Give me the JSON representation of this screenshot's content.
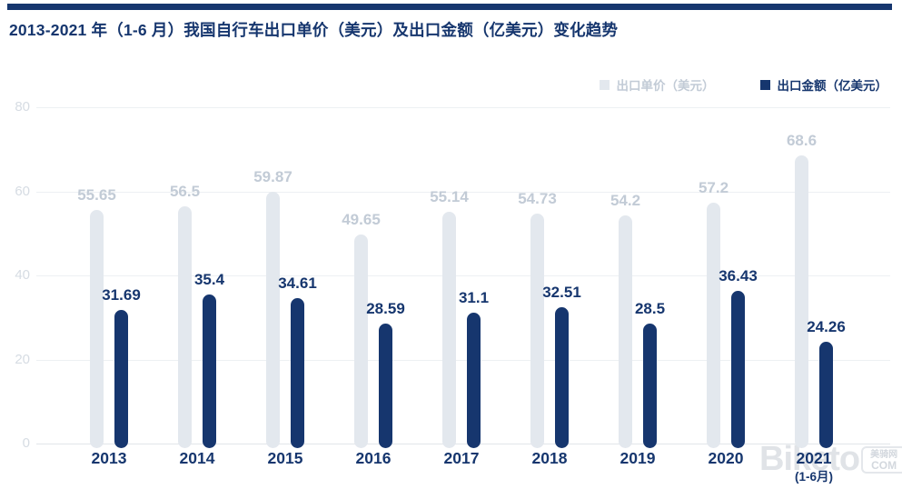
{
  "colors": {
    "navy": "#16366e",
    "gray_bar": "#e3e8ee",
    "gray_label": "#c2cbd6",
    "axis_tick": "#d6dce3",
    "gridline": "#edf0f3",
    "axis_line": "#e2e6ea",
    "background": "#ffffff"
  },
  "watermark": {
    "brand": "Biketo",
    "box_line1": "美骑网",
    "box_line2": "COM"
  },
  "chart_data": {
    "type": "bar",
    "title": "2013-2021 年（1-6 月）我国自行车出口单价（美元）及出口金额（亿美元）变化趋势",
    "categories": [
      "2013",
      "2014",
      "2015",
      "2016",
      "2017",
      "2018",
      "2019",
      "2020",
      "2021"
    ],
    "category_sublabels": [
      null,
      null,
      null,
      null,
      null,
      null,
      null,
      null,
      "(1-6月)"
    ],
    "series": [
      {
        "name": "出口单价（美元）",
        "color": "#e3e8ee",
        "label_color": "#c2cbd6",
        "values": [
          55.65,
          56.5,
          59.87,
          49.65,
          55.14,
          54.73,
          54.2,
          57.2,
          68.6
        ]
      },
      {
        "name": "出口金额（亿美元）",
        "color": "#16366e",
        "label_color": "#16366e",
        "values": [
          31.69,
          35.4,
          34.61,
          28.59,
          31.1,
          32.51,
          28.5,
          36.43,
          24.26
        ]
      }
    ],
    "yticks": [
      0,
      20,
      40,
      60,
      80
    ],
    "ylim": [
      0,
      80
    ],
    "xlabel": "",
    "ylabel": "",
    "grid": true,
    "legend_position": "top-right",
    "value_labels": true
  }
}
